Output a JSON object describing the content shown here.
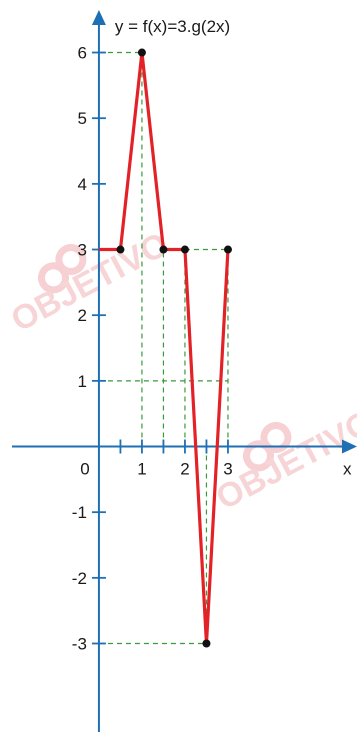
{
  "chart_data": {
    "type": "line",
    "title": "y = f(x)=3.g(2x)",
    "xlabel": "x",
    "ylabel": "",
    "origin_label": "0",
    "xlim": [
      -2.3,
      6.0
    ],
    "ylim": [
      -4.5,
      6.8
    ],
    "x_ticks": [
      0.5,
      1,
      1.5,
      2,
      2.5,
      3
    ],
    "x_tick_labels": [
      {
        "value": 1,
        "label": "1"
      },
      {
        "value": 2,
        "label": "2"
      },
      {
        "value": 3,
        "label": "3"
      }
    ],
    "y_tick_labels": [
      {
        "value": 6,
        "label": "6"
      },
      {
        "value": 5,
        "label": "5"
      },
      {
        "value": 4,
        "label": "4"
      },
      {
        "value": 3,
        "label": "3"
      },
      {
        "value": 2,
        "label": "2"
      },
      {
        "value": 1,
        "label": "1"
      },
      {
        "value": -1,
        "label": "-1"
      },
      {
        "value": -2,
        "label": "-2"
      },
      {
        "value": -3,
        "label": "-3"
      }
    ],
    "series": [
      {
        "color": "#e32228",
        "points": [
          {
            "x": 0,
            "y": 3
          },
          {
            "x": 0.5,
            "y": 3
          },
          {
            "x": 1,
            "y": 6
          },
          {
            "x": 1.5,
            "y": 3
          },
          {
            "x": 2,
            "y": 3
          },
          {
            "x": 2.5,
            "y": -3
          },
          {
            "x": 3,
            "y": 3
          }
        ],
        "marked_points": [
          0.5,
          1,
          1.5,
          2,
          2.5,
          3
        ]
      }
    ],
    "guides_vertical": [
      {
        "x": 1,
        "y_from": 0,
        "y_to": 6
      },
      {
        "x": 1.5,
        "y_from": 0,
        "y_to": 3
      },
      {
        "x": 2,
        "y_from": 0,
        "y_to": 3
      },
      {
        "x": 2.5,
        "y_from": 0,
        "y_to": -3
      },
      {
        "x": 3,
        "y_from": 0,
        "y_to": 3
      }
    ],
    "guides_horizontal": [
      {
        "y": 6,
        "x_from": 0,
        "x_to": 1
      },
      {
        "y": 3,
        "x_from": 2,
        "x_to": 3
      },
      {
        "y": 1,
        "x_from": 0,
        "x_to": 3
      },
      {
        "y": -3,
        "x_from": 0,
        "x_to": 2.5
      }
    ],
    "colors": {
      "axis": "#1f6fb5",
      "curve": "#e32228",
      "guide": "#3a9a3a",
      "point": "#111111",
      "watermark": "#e05a66"
    },
    "watermark_text": "OBJETIVO"
  }
}
